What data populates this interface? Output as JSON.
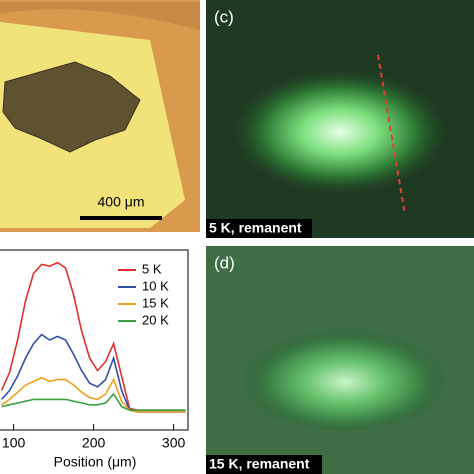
{
  "chart_data": {
    "type": "line",
    "x_label": "Position (μm)",
    "x": [
      85,
      95,
      105,
      115,
      125,
      135,
      145,
      155,
      165,
      175,
      185,
      195,
      205,
      215,
      225,
      235,
      245,
      255,
      265,
      275,
      285,
      295,
      305,
      315
    ],
    "series": [
      {
        "name": "5 K",
        "color": "#e0302a",
        "values": [
          0.22,
          0.32,
          0.5,
          0.72,
          0.87,
          0.92,
          0.91,
          0.93,
          0.9,
          0.75,
          0.55,
          0.4,
          0.33,
          0.38,
          0.48,
          0.3,
          0.12,
          0.11,
          0.11,
          0.11,
          0.11,
          0.11,
          0.11,
          0.11
        ]
      },
      {
        "name": "10 K",
        "color": "#3350a8",
        "values": [
          0.17,
          0.22,
          0.3,
          0.4,
          0.48,
          0.53,
          0.5,
          0.52,
          0.5,
          0.42,
          0.33,
          0.26,
          0.24,
          0.28,
          0.4,
          0.22,
          0.11,
          0.1,
          0.1,
          0.1,
          0.1,
          0.1,
          0.1,
          0.1
        ]
      },
      {
        "name": "15 K",
        "color": "#f0a020",
        "values": [
          0.14,
          0.17,
          0.21,
          0.25,
          0.27,
          0.29,
          0.27,
          0.28,
          0.28,
          0.25,
          0.21,
          0.18,
          0.17,
          0.2,
          0.28,
          0.16,
          0.11,
          0.1,
          0.1,
          0.1,
          0.1,
          0.1,
          0.1,
          0.1
        ]
      },
      {
        "name": "20 K",
        "color": "#3aa040",
        "values": [
          0.13,
          0.14,
          0.15,
          0.16,
          0.17,
          0.17,
          0.17,
          0.17,
          0.17,
          0.16,
          0.15,
          0.14,
          0.14,
          0.15,
          0.2,
          0.13,
          0.11,
          0.11,
          0.11,
          0.11,
          0.11,
          0.11,
          0.11,
          0.11
        ]
      }
    ],
    "xlim": [
      83,
      318
    ],
    "ylim": [
      0,
      1
    ],
    "xticks": [
      100,
      200,
      300
    ]
  },
  "panels": {
    "optical": {
      "scale_bar": "400 μm"
    },
    "c": {
      "label": "(c)",
      "caption": "5 K, remanent"
    },
    "d": {
      "label": "(d)",
      "caption": "15 K, remanent"
    }
  }
}
